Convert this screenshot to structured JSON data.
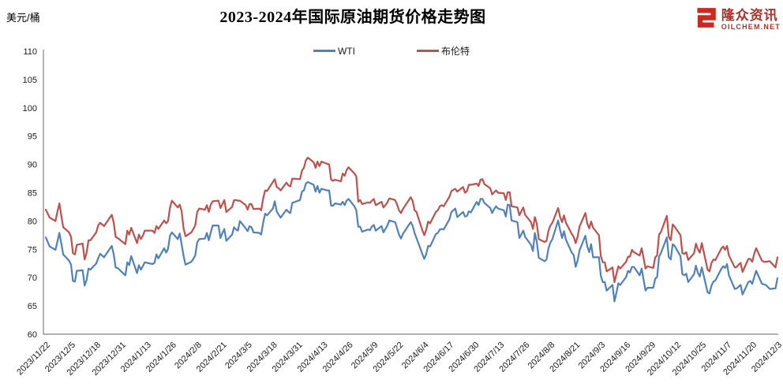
{
  "brand": {
    "name_cn": "隆众资讯",
    "domain": "OILCHEM.NET",
    "icon": "oilchem-e-icon",
    "icon_color": "#cc2a20"
  },
  "chart_data": {
    "type": "line",
    "title": "2023-2024年国际原油期货价格走势图",
    "ylabel": "美元/桶",
    "xlabel": "",
    "ylim": [
      60,
      110
    ],
    "ytick_step": 5,
    "grid": false,
    "legend_position": "top-center",
    "axis_color": "#808080",
    "text_color": "#1a1a1a",
    "x_tick_interval_days": 13,
    "x_domain_days": 377,
    "x_tick_labels": [
      "2023/11/22",
      "2023/12/5",
      "2023/12/18",
      "2023/12/31",
      "2024/1/13",
      "2024/1/26",
      "2024/2/8",
      "2024/2/21",
      "2024/3/5",
      "2024/3/18",
      "2024/3/31",
      "2024/4/13",
      "2024/4/26",
      "2024/5/9",
      "2024/5/22",
      "2024/6/4",
      "2024/6/17",
      "2024/6/30",
      "2024/7/13",
      "2024/7/26",
      "2024/8/8",
      "2024/8/21",
      "2024/9/3",
      "2024/9/16",
      "2024/9/29",
      "2024/10/12",
      "2024/10/25",
      "2024/11/7",
      "2024/11/20",
      "2024/12/3"
    ],
    "days": [
      0,
      2,
      5,
      6,
      7,
      8,
      9,
      12,
      13,
      14,
      15,
      16,
      19,
      20,
      21,
      22,
      23,
      26,
      27,
      28,
      29,
      30,
      34,
      35,
      36,
      37,
      41,
      42,
      43,
      44,
      47,
      48,
      49,
      50,
      51,
      55,
      56,
      57,
      58,
      61,
      62,
      63,
      64,
      65,
      68,
      69,
      70,
      71,
      72,
      75,
      76,
      77,
      78,
      79,
      82,
      83,
      84,
      85,
      86,
      89,
      90,
      91,
      92,
      93,
      96,
      97,
      98,
      99,
      100,
      103,
      104,
      105,
      106,
      107,
      110,
      111,
      112,
      113,
      114,
      117,
      118,
      119,
      120,
      121,
      124,
      125,
      126,
      127,
      131,
      132,
      133,
      134,
      135,
      138,
      139,
      140,
      141,
      142,
      145,
      146,
      147,
      148,
      149,
      152,
      153,
      154,
      155,
      156,
      159,
      160,
      161,
      162,
      163,
      166,
      167,
      168,
      169,
      170,
      173,
      174,
      175,
      176,
      177,
      180,
      181,
      182,
      183,
      184,
      188,
      189,
      190,
      191,
      194,
      195,
      196,
      197,
      198,
      201,
      202,
      203,
      204,
      205,
      208,
      209,
      211,
      212,
      215,
      216,
      217,
      218,
      219,
      222,
      223,
      224,
      225,
      226,
      229,
      230,
      231,
      232,
      233,
      236,
      237,
      238,
      239,
      240,
      243,
      244,
      245,
      246,
      247,
      250,
      251,
      252,
      253,
      254,
      257,
      258,
      259,
      260,
      261,
      264,
      265,
      266,
      267,
      268,
      271,
      272,
      273,
      274,
      275,
      278,
      279,
      280,
      281,
      282,
      285,
      286,
      287,
      288,
      289,
      292,
      293,
      294,
      295,
      296,
      299,
      300,
      301,
      302,
      303,
      306,
      307,
      308,
      309,
      310,
      313,
      314,
      315,
      316,
      317,
      320,
      321,
      322,
      323,
      324,
      327,
      328,
      329,
      330,
      331,
      334,
      335,
      336,
      337,
      338,
      341,
      342,
      343,
      344,
      345,
      348,
      349,
      350,
      351,
      352,
      355,
      356,
      357,
      358,
      359,
      362,
      363,
      364,
      365,
      366,
      369,
      370,
      371,
      373,
      376,
      377
    ],
    "series": [
      {
        "name": "WTI",
        "color": "#4F81BD",
        "values": [
          77.1,
          75.5,
          74.9,
          76.4,
          77.9,
          76.0,
          74.1,
          73.0,
          72.3,
          69.4,
          69.3,
          71.2,
          71.3,
          68.6,
          69.5,
          71.6,
          71.4,
          72.5,
          73.4,
          74.2,
          73.9,
          73.6,
          75.6,
          74.1,
          71.8,
          71.7,
          70.4,
          72.7,
          72.2,
          73.8,
          70.8,
          72.2,
          71.4,
          72.0,
          72.7,
          72.4,
          72.6,
          74.1,
          73.4,
          75.2,
          74.4,
          75.1,
          77.4,
          78.0,
          76.8,
          77.8,
          75.9,
          73.8,
          72.3,
          72.8,
          73.3,
          73.9,
          76.2,
          76.8,
          76.9,
          77.9,
          76.6,
          78.0,
          79.2,
          79.2,
          77.0,
          77.9,
          78.6,
          76.5,
          77.6,
          78.9,
          78.5,
          78.3,
          80.0,
          78.7,
          78.2,
          79.1,
          78.9,
          78.0,
          77.9,
          77.6,
          79.7,
          81.3,
          81.0,
          82.2,
          83.5,
          81.7,
          81.1,
          80.6,
          82.0,
          81.6,
          81.4,
          83.2,
          83.7,
          85.2,
          85.4,
          86.6,
          86.9,
          86.4,
          85.2,
          86.2,
          85.0,
          85.7,
          85.4,
          85.4,
          82.7,
          82.7,
          83.1,
          82.9,
          83.4,
          82.8,
          83.6,
          83.9,
          82.6,
          81.9,
          79.0,
          79.0,
          78.1,
          78.5,
          78.4,
          79.0,
          79.3,
          78.3,
          79.1,
          78.0,
          78.6,
          79.2,
          80.1,
          79.8,
          78.7,
          77.6,
          76.9,
          77.7,
          79.8,
          79.2,
          77.9,
          77.0,
          74.2,
          73.3,
          74.1,
          75.6,
          75.5,
          77.7,
          77.9,
          78.5,
          78.6,
          78.5,
          80.3,
          81.6,
          82.2,
          80.7,
          81.6,
          80.8,
          80.9,
          81.7,
          81.5,
          83.4,
          82.8,
          83.9,
          83.9,
          83.2,
          82.3,
          81.4,
          82.1,
          82.6,
          82.2,
          81.9,
          80.8,
          82.9,
          82.8,
          80.1,
          79.8,
          77.0,
          77.6,
          78.3,
          77.2,
          75.8,
          74.7,
          77.9,
          76.3,
          73.5,
          72.9,
          73.2,
          75.2,
          76.2,
          76.8,
          80.1,
          78.4,
          77.0,
          78.2,
          76.7,
          74.4,
          74.0,
          71.9,
          73.0,
          74.8,
          77.4,
          75.5,
          74.5,
          75.9,
          73.6,
          73.6,
          70.3,
          69.2,
          69.2,
          67.7,
          68.7,
          65.8,
          67.3,
          69.0,
          68.7,
          70.1,
          71.2,
          70.9,
          71.9,
          71.9,
          70.4,
          71.6,
          69.7,
          67.7,
          68.2,
          68.2,
          69.8,
          70.1,
          73.7,
          74.4,
          77.1,
          73.6,
          73.2,
          75.9,
          75.6,
          73.8,
          70.6,
          70.4,
          70.7,
          69.2,
          70.6,
          72.1,
          70.8,
          70.2,
          71.8,
          67.4,
          67.2,
          68.6,
          69.3,
          69.5,
          71.5,
          72.0,
          71.7,
          72.4,
          70.4,
          68.0,
          68.1,
          68.4,
          68.7,
          67.0,
          69.2,
          69.4,
          68.9,
          70.1,
          71.2,
          68.9,
          68.8,
          68.7,
          68.0,
          68.1,
          69.9
        ]
      },
      {
        "name": "布伦特",
        "color": "#C0504D",
        "values": [
          82.0,
          80.6,
          80.0,
          81.7,
          83.1,
          80.9,
          78.9,
          78.0,
          77.2,
          74.3,
          74.1,
          75.8,
          76.0,
          73.2,
          74.3,
          76.6,
          76.6,
          78.0,
          79.2,
          79.7,
          79.4,
          79.1,
          81.1,
          79.7,
          77.2,
          77.0,
          75.9,
          78.3,
          77.6,
          78.8,
          76.1,
          77.6,
          76.8,
          77.4,
          78.3,
          78.3,
          77.9,
          79.1,
          78.6,
          80.1,
          79.6,
          80.0,
          82.4,
          83.6,
          82.4,
          82.9,
          81.7,
          78.7,
          77.3,
          78.0,
          78.6,
          79.2,
          81.6,
          82.2,
          82.0,
          82.8,
          81.6,
          82.9,
          83.5,
          83.6,
          82.3,
          83.0,
          83.7,
          81.6,
          82.5,
          83.7,
          83.7,
          83.6,
          83.6,
          82.8,
          82.0,
          83.0,
          83.0,
          82.1,
          82.2,
          81.9,
          84.0,
          85.4,
          85.3,
          86.9,
          87.4,
          86.0,
          85.8,
          85.4,
          86.8,
          86.3,
          86.1,
          87.5,
          87.4,
          88.9,
          89.4,
          90.7,
          91.2,
          90.4,
          89.4,
          90.5,
          89.7,
          90.5,
          90.1,
          90.0,
          87.3,
          87.1,
          87.3,
          87.0,
          88.4,
          88.0,
          89.0,
          89.5,
          88.4,
          87.9,
          83.4,
          83.7,
          83.0,
          83.3,
          83.2,
          83.6,
          83.9,
          82.8,
          83.4,
          82.4,
          82.8,
          83.3,
          84.0,
          83.7,
          82.9,
          81.9,
          81.4,
          82.1,
          84.2,
          83.6,
          81.9,
          81.6,
          78.4,
          77.5,
          78.4,
          79.9,
          79.6,
          81.6,
          81.9,
          82.6,
          82.8,
          82.6,
          84.3,
          85.3,
          85.7,
          85.2,
          86.0,
          85.0,
          85.3,
          86.4,
          86.4,
          86.6,
          86.2,
          87.3,
          87.4,
          86.5,
          85.8,
          84.7,
          85.1,
          85.4,
          85.0,
          84.9,
          83.7,
          85.1,
          85.1,
          82.6,
          82.4,
          81.0,
          81.7,
          82.4,
          81.1,
          79.8,
          78.6,
          80.7,
          79.5,
          76.8,
          76.3,
          76.5,
          78.3,
          79.2,
          79.7,
          82.3,
          80.7,
          79.8,
          81.0,
          79.7,
          77.7,
          77.2,
          76.1,
          77.2,
          79.0,
          81.4,
          79.6,
          78.7,
          79.9,
          78.8,
          77.5,
          73.8,
          72.7,
          72.7,
          71.1,
          71.8,
          69.2,
          70.6,
          72.0,
          71.6,
          72.8,
          73.7,
          73.7,
          74.9,
          74.5,
          73.9,
          75.2,
          73.5,
          71.6,
          72.0,
          71.7,
          73.6,
          73.9,
          77.6,
          78.1,
          80.9,
          77.2,
          76.6,
          79.4,
          79.0,
          77.5,
          74.3,
          74.2,
          74.5,
          73.1,
          74.3,
          76.0,
          75.0,
          74.4,
          76.1,
          71.4,
          71.1,
          72.6,
          73.2,
          73.1,
          75.1,
          75.5,
          74.9,
          75.6,
          73.9,
          71.8,
          71.9,
          72.3,
          72.6,
          71.0,
          73.3,
          73.3,
          72.8,
          74.2,
          75.2,
          73.0,
          72.8,
          72.8,
          72.9,
          71.8,
          73.6
        ]
      }
    ]
  }
}
